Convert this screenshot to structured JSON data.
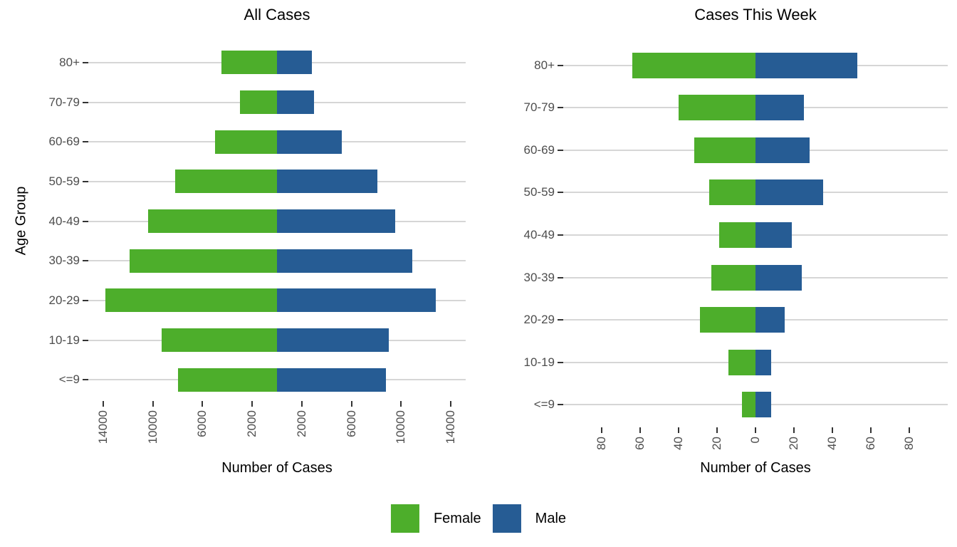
{
  "figure": {
    "background": "#ffffff",
    "colors": {
      "female": "#4DAE2B",
      "male": "#265C94",
      "gridline": "#d6d6d6",
      "tick": "#333333",
      "axis_text": "#4d4d4d"
    }
  },
  "legend": {
    "items": [
      {
        "label": "Female",
        "color": "#4DAE2B"
      },
      {
        "label": "Male",
        "color": "#265C94"
      }
    ]
  },
  "chart_data": [
    {
      "type": "bar",
      "subtype": "population-pyramid",
      "title": "All Cases",
      "xlabel": "Number of Cases",
      "ylabel": "Age Group",
      "categories": [
        "80+",
        "70-79",
        "60-69",
        "50-59",
        "40-49",
        "30-39",
        "20-29",
        "10-19",
        "<=9"
      ],
      "series": [
        {
          "name": "Female",
          "side": "left",
          "color": "#4DAE2B",
          "values": [
            4500,
            3000,
            5000,
            8200,
            10400,
            11900,
            13800,
            9300,
            8000
          ]
        },
        {
          "name": "Male",
          "side": "right",
          "color": "#265C94",
          "values": [
            2800,
            3000,
            5200,
            8100,
            9500,
            10900,
            12800,
            9000,
            8800
          ]
        }
      ],
      "xlim": [
        -15200,
        15200
      ],
      "xticks": [
        -14000,
        -10000,
        -6000,
        -2000,
        2000,
        6000,
        10000,
        14000
      ],
      "xtick_labels": [
        "14000",
        "10000",
        "6000",
        "2000",
        "2000",
        "6000",
        "10000",
        "14000"
      ],
      "grid": "horizontal-only",
      "legend_position": "bottom"
    },
    {
      "type": "bar",
      "subtype": "population-pyramid",
      "title": "Cases This Week",
      "xlabel": "Number of Cases",
      "ylabel": "",
      "categories": [
        "80+",
        "70-79",
        "60-69",
        "50-59",
        "40-49",
        "30-39",
        "20-29",
        "10-19",
        "<=9"
      ],
      "series": [
        {
          "name": "Female",
          "side": "left",
          "color": "#4DAE2B",
          "values": [
            64,
            40,
            32,
            24,
            19,
            23,
            29,
            14,
            7
          ]
        },
        {
          "name": "Male",
          "side": "right",
          "color": "#265C94",
          "values": [
            53,
            25,
            28,
            35,
            19,
            24,
            15,
            8,
            8
          ]
        }
      ],
      "xlim": [
        -100,
        100
      ],
      "xticks": [
        -80,
        -60,
        -40,
        -20,
        0,
        20,
        40,
        60,
        80
      ],
      "xtick_labels": [
        "80",
        "60",
        "40",
        "20",
        "0",
        "20",
        "40",
        "60",
        "80"
      ],
      "grid": "horizontal-only",
      "legend_position": "bottom"
    }
  ]
}
